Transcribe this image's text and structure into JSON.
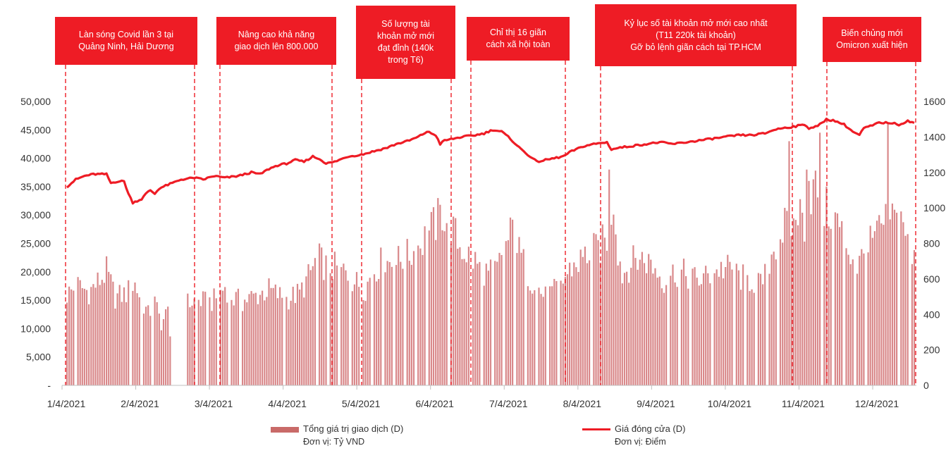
{
  "chart_data": {
    "type": "bar",
    "colors": {
      "bars": "#d9888a",
      "bar_edge": "#c0504d",
      "line": "#ee1c25",
      "annotation": "#ee1c25"
    },
    "x_tick_labels": [
      "1/4/2021",
      "2/4/2021",
      "3/4/2021",
      "4/4/2021",
      "5/4/2021",
      "6/4/2021",
      "7/4/2021",
      "8/4/2021",
      "9/4/2021",
      "10/4/2021",
      "11/4/2021",
      "12/4/2021"
    ],
    "y_left": {
      "ticks": [
        "-",
        "5,000",
        "10,000",
        "15,000",
        "20,000",
        "25,000",
        "30,000",
        "35,000",
        "40,000",
        "45,000",
        "50,000"
      ],
      "range": [
        0,
        50000
      ]
    },
    "y_right": {
      "ticks": [
        "0",
        "200",
        "400",
        "600",
        "800",
        "1000",
        "1200",
        "1400",
        "1600"
      ],
      "range": [
        0,
        1600
      ]
    },
    "grid": false,
    "legend_position": "bottom",
    "series": [
      {
        "name": "Tổng giá trị giao dịch (D)",
        "unit_label": "Đơn vị: Tỷ VND",
        "kind": "bar",
        "axis": "left",
        "anchors": [
          [
            0,
            16000
          ],
          [
            5,
            17500
          ],
          [
            10,
            16500
          ],
          [
            15,
            18500
          ],
          [
            18,
            20000
          ],
          [
            22,
            15500
          ],
          [
            27,
            16200
          ],
          [
            31,
            17800
          ],
          [
            34,
            15000
          ],
          [
            37,
            12500
          ],
          [
            40,
            14500
          ],
          [
            43,
            11000
          ],
          [
            46,
            13000
          ],
          [
            50,
            0
          ],
          [
            55,
            14500
          ],
          [
            60,
            15000
          ],
          [
            64,
            14500
          ],
          [
            68,
            15200
          ],
          [
            72,
            17500
          ],
          [
            76,
            15200
          ],
          [
            80,
            14800
          ],
          [
            86,
            15800
          ],
          [
            92,
            16800
          ],
          [
            100,
            15200
          ],
          [
            106,
            16200
          ],
          [
            110,
            19000
          ],
          [
            114,
            22500
          ],
          [
            118,
            21000
          ],
          [
            124,
            20500
          ],
          [
            128,
            19500
          ],
          [
            132,
            18000
          ],
          [
            136,
            17200
          ],
          [
            140,
            20500
          ],
          [
            143,
            21500
          ],
          [
            147,
            21800
          ],
          [
            152,
            22000
          ],
          [
            158,
            23500
          ],
          [
            164,
            26500
          ],
          [
            168,
            28500
          ],
          [
            171,
            30500
          ],
          [
            175,
            28000
          ],
          [
            179,
            24500
          ],
          [
            184,
            22500
          ],
          [
            188,
            21000
          ],
          [
            192,
            19500
          ],
          [
            196,
            20500
          ],
          [
            200,
            24500
          ],
          [
            203,
            27500
          ],
          [
            206,
            23500
          ],
          [
            210,
            19500
          ],
          [
            214,
            17500
          ],
          [
            218,
            15500
          ],
          [
            222,
            16500
          ],
          [
            226,
            18500
          ],
          [
            230,
            20800
          ],
          [
            234,
            22000
          ],
          [
            238,
            23500
          ],
          [
            242,
            24000
          ],
          [
            246,
            26000
          ],
          [
            249,
            33000
          ],
          [
            251,
            24000
          ],
          [
            253,
            19500
          ],
          [
            257,
            21500
          ],
          [
            261,
            22500
          ],
          [
            266,
            21500
          ],
          [
            272,
            18500
          ],
          [
            277,
            20000
          ],
          [
            282,
            19500
          ],
          [
            287,
            18500
          ],
          [
            292,
            19200
          ],
          [
            297,
            20500
          ],
          [
            302,
            20500
          ],
          [
            307,
            19000
          ],
          [
            312,
            18500
          ],
          [
            316,
            17500
          ],
          [
            320,
            22000
          ],
          [
            324,
            26000
          ],
          [
            328,
            28500
          ],
          [
            331,
            28000
          ],
          [
            333,
            31000
          ],
          [
            336,
            28500
          ],
          [
            339,
            34000
          ],
          [
            342,
            35000
          ],
          [
            345,
            31000
          ],
          [
            349,
            30500
          ],
          [
            352,
            28000
          ],
          [
            356,
            24000
          ],
          [
            360,
            21000
          ],
          [
            364,
            23500
          ],
          [
            368,
            26000
          ],
          [
            372,
            28000
          ],
          [
            375,
            30500
          ],
          [
            378,
            28500
          ],
          [
            381,
            30000
          ],
          [
            384,
            22000
          ],
          [
            386,
            21800
          ]
        ],
        "spikes": [
          [
            247,
            38000
          ],
          [
            329,
            43000
          ],
          [
            343,
            44500
          ],
          [
            337,
            38000
          ],
          [
            374,
            46000
          ],
          [
            338,
            36000
          ]
        ],
        "gaps": [
          [
            48,
            53
          ]
        ]
      },
      {
        "name": "Giá đóng cửa (D)",
        "unit_label": "Đơn vị: Điểm",
        "kind": "line",
        "axis": "right",
        "anchors": [
          [
            0,
            1120
          ],
          [
            4,
            1160
          ],
          [
            8,
            1180
          ],
          [
            12,
            1190
          ],
          [
            18,
            1190
          ],
          [
            20,
            1140
          ],
          [
            23,
            1150
          ],
          [
            26,
            1150
          ],
          [
            28,
            1080
          ],
          [
            30,
            1030
          ],
          [
            34,
            1050
          ],
          [
            36,
            1080
          ],
          [
            38,
            1100
          ],
          [
            40,
            1080
          ],
          [
            42,
            1110
          ],
          [
            48,
            1140
          ],
          [
            52,
            1160
          ],
          [
            58,
            1170
          ],
          [
            62,
            1160
          ],
          [
            67,
            1180
          ],
          [
            72,
            1170
          ],
          [
            78,
            1180
          ],
          [
            84,
            1200
          ],
          [
            88,
            1190
          ],
          [
            92,
            1220
          ],
          [
            96,
            1240
          ],
          [
            100,
            1250
          ],
          [
            104,
            1270
          ],
          [
            108,
            1260
          ],
          [
            112,
            1290
          ],
          [
            116,
            1270
          ],
          [
            118,
            1250
          ],
          [
            122,
            1260
          ],
          [
            128,
            1290
          ],
          [
            134,
            1300
          ],
          [
            140,
            1320
          ],
          [
            146,
            1340
          ],
          [
            150,
            1360
          ],
          [
            156,
            1380
          ],
          [
            160,
            1400
          ],
          [
            164,
            1430
          ],
          [
            168,
            1410
          ],
          [
            170,
            1360
          ],
          [
            172,
            1380
          ],
          [
            176,
            1390
          ],
          [
            180,
            1400
          ],
          [
            186,
            1410
          ],
          [
            190,
            1420
          ],
          [
            194,
            1440
          ],
          [
            198,
            1430
          ],
          [
            202,
            1390
          ],
          [
            206,
            1340
          ],
          [
            210,
            1300
          ],
          [
            214,
            1260
          ],
          [
            218,
            1270
          ],
          [
            222,
            1280
          ],
          [
            226,
            1290
          ],
          [
            230,
            1320
          ],
          [
            236,
            1350
          ],
          [
            240,
            1360
          ],
          [
            246,
            1370
          ],
          [
            248,
            1330
          ],
          [
            252,
            1340
          ],
          [
            258,
            1350
          ],
          [
            264,
            1360
          ],
          [
            270,
            1370
          ],
          [
            276,
            1360
          ],
          [
            282,
            1370
          ],
          [
            288,
            1380
          ],
          [
            294,
            1390
          ],
          [
            300,
            1400
          ],
          [
            306,
            1410
          ],
          [
            312,
            1410
          ],
          [
            318,
            1420
          ],
          [
            322,
            1440
          ],
          [
            326,
            1450
          ],
          [
            332,
            1460
          ],
          [
            336,
            1470
          ],
          [
            338,
            1450
          ],
          [
            342,
            1460
          ],
          [
            346,
            1500
          ],
          [
            350,
            1490
          ],
          [
            354,
            1470
          ],
          [
            356,
            1450
          ],
          [
            358,
            1430
          ],
          [
            361,
            1410
          ],
          [
            363,
            1450
          ],
          [
            366,
            1460
          ],
          [
            370,
            1480
          ],
          [
            375,
            1480
          ],
          [
            379,
            1470
          ],
          [
            383,
            1490
          ],
          [
            386,
            1480
          ]
        ]
      }
    ],
    "n_points": 387,
    "events": [
      {
        "text": "Làn sóng Covid lần 3 tại\nQuảng Ninh, Hải Dương",
        "line_a": 0,
        "line_b": 58
      },
      {
        "text": "Nâng cao khả năng\ngiao dịch lên 800.000",
        "line_a": 67,
        "line_b": 122
      },
      {
        "text": "Số lượng tài\nkhoản mở mới\nđạt đỉnh (140k\ntrong T6)",
        "line_a": 134,
        "line_b": 177
      },
      {
        "text": "Chỉ thị 16 giãn\ncách xã hội toàn",
        "line_a": 182,
        "line_b": 229
      },
      {
        "text": "Kỷ lục số tài khoản mở mới cao nhất\n(T11 220k tài khoản)\nGỡ bỏ lệnh giãn cách tại TP.HCM",
        "line_a": 243,
        "line_b": 332
      },
      {
        "text": "Biến chủng mới\nOmicron xuất hiện",
        "line_a": 345,
        "line_b": 384
      }
    ]
  }
}
